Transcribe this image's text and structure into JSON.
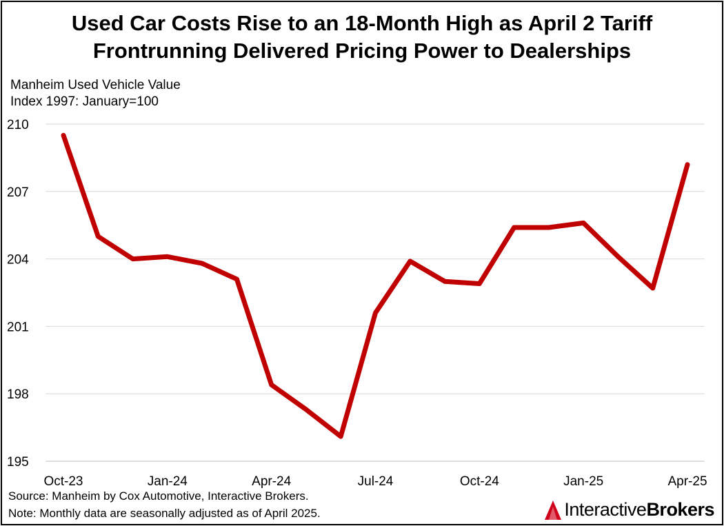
{
  "title_line1": "Used Car Costs Rise to an 18-Month High as April 2 Tariff",
  "title_line2": "Frontrunning Delivered Pricing Power to Dealerships",
  "y_axis_label_line1": "Manheim Used Vehicle Value",
  "y_axis_label_line2": "Index 1997: January=100",
  "source": "Source: Manheim by Cox Automotive, Interactive Brokers.",
  "note": "Note: Monthly data are seasonally adjusted as of April 2025.",
  "logo": {
    "part1": "Interactive",
    "part2": "Brokers",
    "icon": "interactive-brokers-logo-icon",
    "color": "#d0021b"
  },
  "chart_data": {
    "type": "line",
    "title": "Used Car Costs Rise to an 18-Month High as April 2 Tariff Frontrunning Delivered Pricing Power to Dealerships",
    "ylabel": "Manheim Used Vehicle Value Index 1997: January=100",
    "xlabel": "",
    "x": [
      "Oct-23",
      "Nov-23",
      "Dec-23",
      "Jan-24",
      "Feb-24",
      "Mar-24",
      "Apr-24",
      "May-24",
      "Jun-24",
      "Jul-24",
      "Aug-24",
      "Sep-24",
      "Oct-24",
      "Nov-24",
      "Dec-24",
      "Jan-25",
      "Feb-25",
      "Mar-25",
      "Apr-25"
    ],
    "x_tick_labels": [
      "Oct-23",
      "",
      "",
      "Jan-24",
      "",
      "",
      "Apr-24",
      "",
      "",
      "Jul-24",
      "",
      "",
      "Oct-24",
      "",
      "",
      "Jan-25",
      "",
      "",
      "Apr-25"
    ],
    "series": [
      {
        "name": "Manheim Used Vehicle Value Index",
        "color": "#c00000",
        "values": [
          209.5,
          205.0,
          204.0,
          204.1,
          203.8,
          203.1,
          198.4,
          197.3,
          196.1,
          201.6,
          203.9,
          203.0,
          202.9,
          205.4,
          205.4,
          205.6,
          204.1,
          202.7,
          208.2
        ]
      }
    ],
    "ylim": [
      195,
      210
    ],
    "yticks": [
      195,
      198,
      201,
      204,
      207,
      210
    ],
    "grid": true,
    "legend": "none"
  }
}
